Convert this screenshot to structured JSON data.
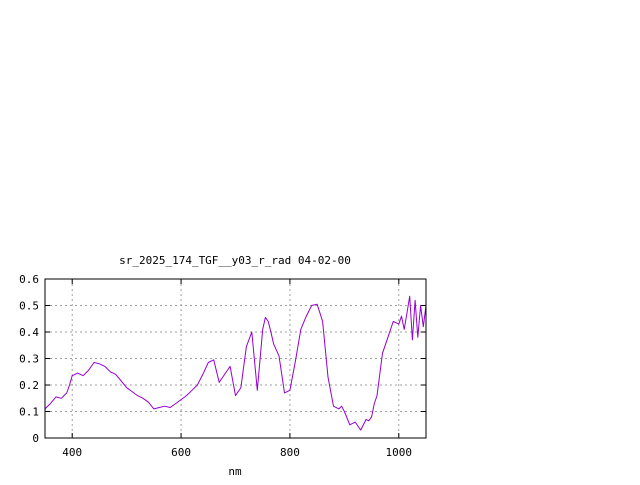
{
  "chart_data": {
    "type": "line",
    "title": "sr_2025_174_TGF__y03_r_rad 04-02-00",
    "xlabel": "nm",
    "ylabel": "",
    "xlim": [
      350,
      1050
    ],
    "ylim": [
      0,
      0.6
    ],
    "x_ticks": [
      400,
      600,
      800,
      1000
    ],
    "y_ticks": [
      0,
      0.1,
      0.2,
      0.3,
      0.4,
      0.5,
      0.6
    ],
    "x_tick_labels": [
      "400",
      "600",
      "800",
      "1000"
    ],
    "y_tick_labels": [
      "0",
      "0.1",
      "0.2",
      "0.3",
      "0.4",
      "0.5",
      "0.6"
    ],
    "grid": true,
    "series": [
      {
        "color": "#9400d3",
        "x": [
          350,
          360,
          370,
          380,
          390,
          395,
          400,
          410,
          420,
          430,
          440,
          450,
          460,
          470,
          480,
          490,
          500,
          510,
          520,
          530,
          540,
          550,
          560,
          570,
          580,
          590,
          600,
          610,
          620,
          630,
          640,
          650,
          660,
          670,
          680,
          690,
          700,
          710,
          715,
          720,
          730,
          740,
          750,
          755,
          760,
          765,
          770,
          780,
          790,
          800,
          810,
          820,
          830,
          840,
          850,
          860,
          870,
          880,
          890,
          895,
          900,
          910,
          920,
          930,
          940,
          945,
          950,
          955,
          960,
          970,
          980,
          990,
          1000,
          1005,
          1010,
          1015,
          1020,
          1025,
          1030,
          1035,
          1040,
          1045,
          1050
        ],
        "y": [
          0.11,
          0.13,
          0.155,
          0.15,
          0.17,
          0.2,
          0.235,
          0.245,
          0.235,
          0.255,
          0.285,
          0.28,
          0.27,
          0.25,
          0.24,
          0.215,
          0.19,
          0.175,
          0.16,
          0.15,
          0.135,
          0.11,
          0.115,
          0.12,
          0.115,
          0.13,
          0.145,
          0.16,
          0.18,
          0.2,
          0.24,
          0.285,
          0.295,
          0.21,
          0.24,
          0.27,
          0.16,
          0.19,
          0.27,
          0.345,
          0.4,
          0.18,
          0.41,
          0.455,
          0.44,
          0.4,
          0.355,
          0.31,
          0.17,
          0.18,
          0.29,
          0.41,
          0.46,
          0.5,
          0.505,
          0.44,
          0.23,
          0.12,
          0.11,
          0.12,
          0.1,
          0.05,
          0.06,
          0.03,
          0.07,
          0.065,
          0.08,
          0.13,
          0.16,
          0.32,
          0.38,
          0.44,
          0.43,
          0.46,
          0.41,
          0.47,
          0.535,
          0.37,
          0.52,
          0.38,
          0.5,
          0.42,
          0.5
        ]
      }
    ]
  }
}
